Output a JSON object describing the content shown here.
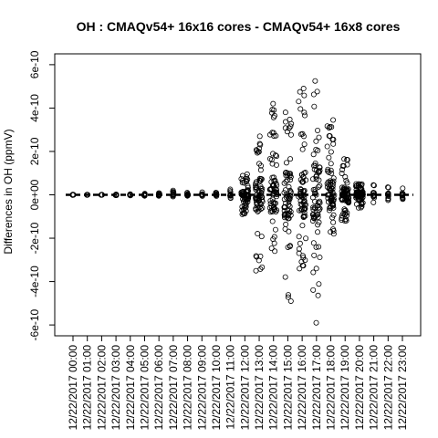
{
  "chart_data": {
    "type": "scatter",
    "title": "OH : CMAQv54+ 16x16 cores - CMAQv54+ 16x8 cores",
    "xlabel": "",
    "ylabel": "Differences in OH (ppmV)",
    "ylim": [
      -6.5e-10,
      6.5e-10
    ],
    "yticks": [
      -6e-10,
      -4e-10,
      -2e-10,
      0,
      2e-10,
      4e-10,
      6e-10
    ],
    "ytick_labels": [
      "-6e-10",
      "-4e-10",
      "-2e-10",
      "0e+00",
      "2e-10",
      "4e-10",
      "6e-10"
    ],
    "reference_line_y": 0,
    "grid": false,
    "categories": [
      "12/22/2017 00:00",
      "12/22/2017 01:00",
      "12/22/2017 02:00",
      "12/22/2017 03:00",
      "12/22/2017 04:00",
      "12/22/2017 05:00",
      "12/22/2017 06:00",
      "12/22/2017 07:00",
      "12/22/2017 08:00",
      "12/22/2017 09:00",
      "12/22/2017 10:00",
      "12/22/2017 11:00",
      "12/22/2017 12:00",
      "12/22/2017 13:00",
      "12/22/2017 14:00",
      "12/22/2017 15:00",
      "12/22/2017 16:00",
      "12/22/2017 17:00",
      "12/22/2017 18:00",
      "12/22/2017 19:00",
      "12/22/2017 20:00",
      "12/22/2017 21:00",
      "12/22/2017 22:00",
      "12/22/2017 23:00"
    ],
    "series_ranges": [
      {
        "min": -1e-12,
        "max": 1e-12
      },
      {
        "min": -1e-12,
        "max": 1e-12
      },
      {
        "min": -1e-12,
        "max": 1e-12
      },
      {
        "min": -2e-12,
        "max": 2e-12
      },
      {
        "min": -3e-12,
        "max": 3e-12
      },
      {
        "min": -5e-12,
        "max": 6e-12
      },
      {
        "min": -5e-12,
        "max": 8e-12
      },
      {
        "min": -8e-12,
        "max": 2e-11
      },
      {
        "min": -5e-12,
        "max": 1e-11
      },
      {
        "min": -6e-12,
        "max": 1.2e-11
      },
      {
        "min": -6e-12,
        "max": 1e-11
      },
      {
        "min": -1.5e-11,
        "max": 2.5e-11
      },
      {
        "min": -9e-11,
        "max": 9.5e-11
      },
      {
        "min": -3.5e-10,
        "max": 2.7e-10
      },
      {
        "min": -2.6e-10,
        "max": 4.2e-10
      },
      {
        "min": -4.9e-10,
        "max": 3.8e-10
      },
      {
        "min": -3.4e-10,
        "max": 4.9e-10
      },
      {
        "min": -5.9e-10,
        "max": 5.25e-10
      },
      {
        "min": -1.8e-10,
        "max": 3.45e-10
      },
      {
        "min": -1.2e-10,
        "max": 1.65e-10
      },
      {
        "min": -6e-11,
        "max": 5e-11
      },
      {
        "min": -3.5e-11,
        "max": 4.5e-11
      },
      {
        "min": -2.5e-11,
        "max": 3.5e-11
      },
      {
        "min": -2e-11,
        "max": 3e-11
      }
    ]
  }
}
